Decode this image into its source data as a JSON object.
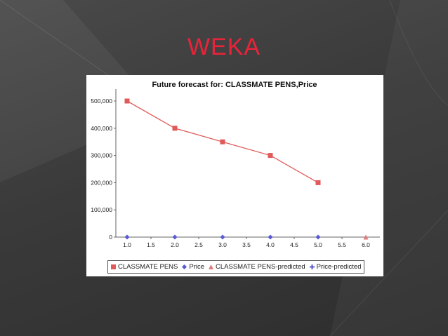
{
  "slide": {
    "title": "WEKA"
  },
  "chart_data": {
    "type": "line",
    "title": "Future forecast for: CLASSMATE PENS,Price",
    "xlabel": "",
    "ylabel": "",
    "x_ticks": [
      "1.0",
      "1.5",
      "2.0",
      "2.5",
      "3.0",
      "3.5",
      "4.0",
      "4.5",
      "5.0",
      "5.5",
      "6.0"
    ],
    "y_ticks": [
      "0",
      "100,000",
      "200,000",
      "300,000",
      "400,000",
      "500,000"
    ],
    "xlim": [
      1.0,
      6.0
    ],
    "ylim": [
      0,
      520000
    ],
    "grid": false,
    "legend_position": "bottom",
    "series": [
      {
        "name": "CLASSMATE PENS",
        "color": "#e05a5a",
        "marker": "square",
        "line": true,
        "x": [
          1,
          2,
          3,
          4,
          5
        ],
        "values": [
          500000,
          400000,
          350000,
          300000,
          200000
        ]
      },
      {
        "name": "Price",
        "color": "#5a5ad0",
        "marker": "diamond",
        "line": false,
        "x": [
          1,
          2,
          3,
          4,
          5
        ],
        "values": [
          0,
          0,
          0,
          0,
          0
        ]
      },
      {
        "name": "CLASSMATE PENS-predicted",
        "color": "#e07a7a",
        "marker": "triangle",
        "line": false,
        "x": [
          6
        ],
        "values": [
          0
        ]
      },
      {
        "name": "Price-predicted",
        "color": "#5a5ad0",
        "marker": "cross",
        "line": false,
        "x": [],
        "values": []
      }
    ],
    "legend": [
      {
        "label": "CLASSMATE PENS",
        "marker": "square",
        "color": "#e05a5a"
      },
      {
        "label": "Price",
        "marker": "diamond",
        "color": "#5a5ad0"
      },
      {
        "label": "CLASSMATE PENS-predicted",
        "marker": "triangle",
        "color": "#e07a7a"
      },
      {
        "label": "Price-predicted",
        "marker": "cross",
        "color": "#5a5ad0"
      }
    ]
  }
}
